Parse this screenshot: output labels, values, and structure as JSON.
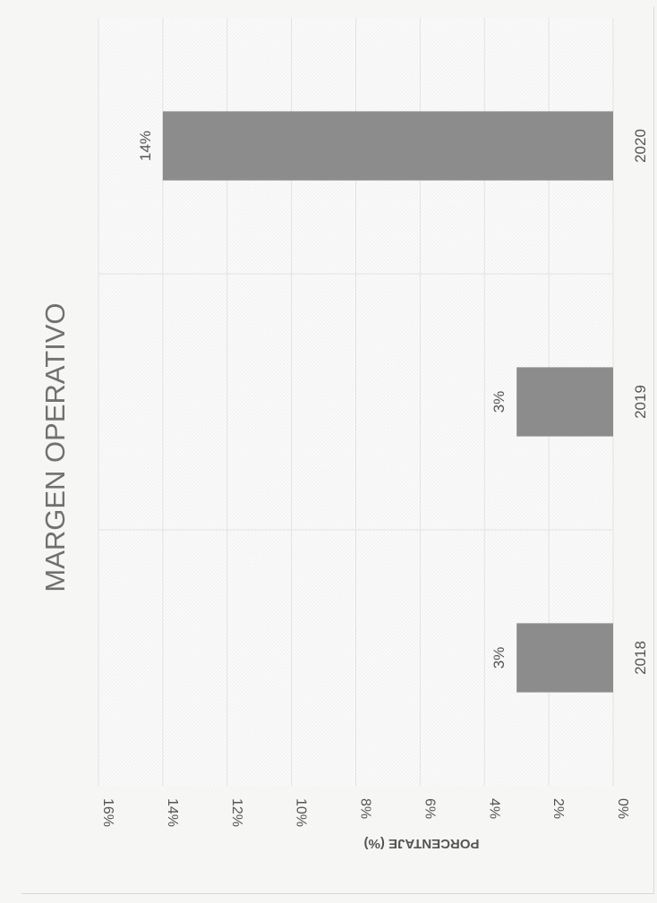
{
  "chart_data": {
    "type": "bar",
    "title": "MARGEN OPERATIVO",
    "ylabel": "PORCENTAJE (%)",
    "xlabel": "",
    "categories": [
      "2018",
      "2019",
      "2020"
    ],
    "values": [
      3,
      3,
      14
    ],
    "data_labels": [
      "3%",
      "3%",
      "14%"
    ],
    "ylim": [
      0,
      16
    ],
    "y_ticks": [
      "0%",
      "2%",
      "4%",
      "6%",
      "8%",
      "10%",
      "12%",
      "14%",
      "16%"
    ],
    "grid": true,
    "legend": "none",
    "orientation": "rotated 90 degrees (page scanned sideways)",
    "colors": {
      "bar": "#8c8c8c",
      "grid": "#e2e2e0",
      "text": "#555555",
      "title": "#707070"
    }
  }
}
